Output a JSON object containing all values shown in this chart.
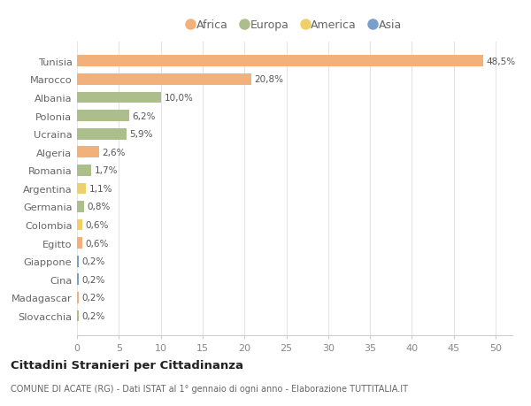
{
  "countries": [
    "Tunisia",
    "Marocco",
    "Albania",
    "Polonia",
    "Ucraina",
    "Algeria",
    "Romania",
    "Argentina",
    "Germania",
    "Colombia",
    "Egitto",
    "Giappone",
    "Cina",
    "Madagascar",
    "Slovacchia"
  ],
  "values": [
    48.5,
    20.8,
    10.0,
    6.2,
    5.9,
    2.6,
    1.7,
    1.1,
    0.8,
    0.6,
    0.6,
    0.2,
    0.2,
    0.2,
    0.2
  ],
  "labels": [
    "48,5%",
    "20,8%",
    "10,0%",
    "6,2%",
    "5,9%",
    "2,6%",
    "1,7%",
    "1,1%",
    "0,8%",
    "0,6%",
    "0,6%",
    "0,2%",
    "0,2%",
    "0,2%",
    "0,2%"
  ],
  "continents": [
    "Africa",
    "Africa",
    "Europa",
    "Europa",
    "Europa",
    "Africa",
    "Europa",
    "America",
    "Europa",
    "America",
    "Africa",
    "Asia",
    "Asia",
    "Africa",
    "Europa"
  ],
  "colors": {
    "Africa": "#F2B07B",
    "Europa": "#ABBE8C",
    "America": "#EDD06A",
    "Asia": "#7B9FCC"
  },
  "legend_order": [
    "Africa",
    "Europa",
    "America",
    "Asia"
  ],
  "title": "Cittadini Stranieri per Cittadinanza",
  "subtitle": "COMUNE DI ACATE (RG) - Dati ISTAT al 1° gennaio di ogni anno - Elaborazione TUTTITALIA.IT",
  "xlim": [
    0,
    52
  ],
  "xticks": [
    0,
    5,
    10,
    15,
    20,
    25,
    30,
    35,
    40,
    45,
    50
  ],
  "background_color": "#ffffff",
  "grid_color": "#e5e5e5"
}
